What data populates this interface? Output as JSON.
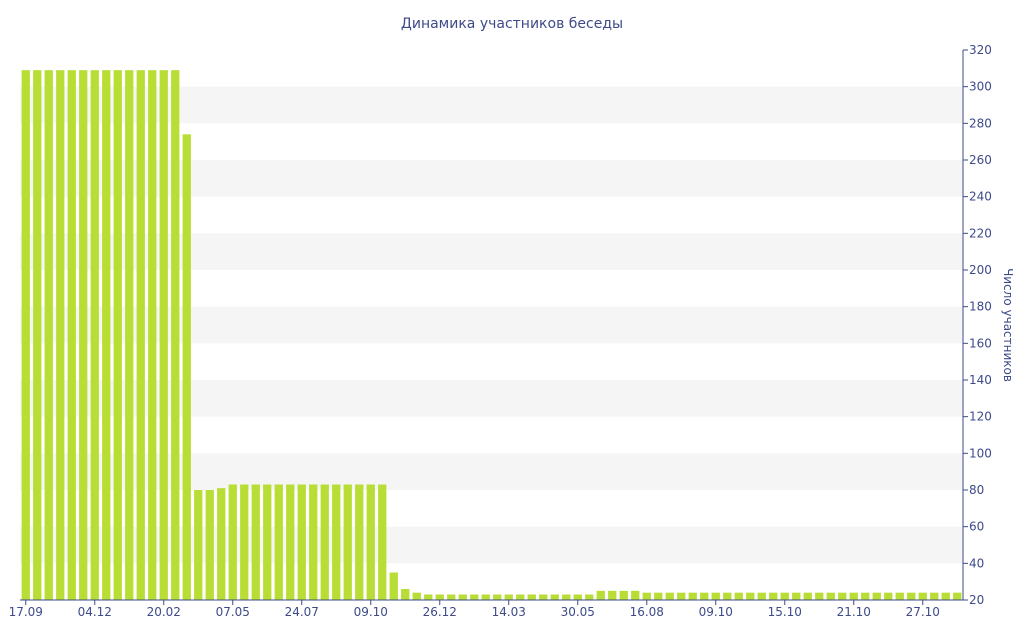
{
  "chart_data": {
    "type": "bar",
    "title": "Динамика участников беседы",
    "xlabel": "",
    "ylabel": "Число участников",
    "ylim": [
      20,
      320
    ],
    "yticks": [
      20,
      40,
      60,
      80,
      100,
      120,
      140,
      160,
      180,
      200,
      220,
      240,
      260,
      280,
      300,
      320
    ],
    "y_axis_side": "right",
    "grid": "alternating horizontal bands",
    "bar_color": "#b8dd34",
    "band_color": "#f5f5f5",
    "text_color": "#3e4a89",
    "x_tick_labels": [
      {
        "label": "17.09",
        "index": 0
      },
      {
        "label": "04.12",
        "index": 6
      },
      {
        "label": "20.02",
        "index": 12
      },
      {
        "label": "07.05",
        "index": 18
      },
      {
        "label": "24.07",
        "index": 24
      },
      {
        "label": "09.10",
        "index": 30
      },
      {
        "label": "26.12",
        "index": 36
      },
      {
        "label": "14.03",
        "index": 42
      },
      {
        "label": "30.05",
        "index": 48
      },
      {
        "label": "16.08",
        "index": 54
      },
      {
        "label": "09.10",
        "index": 60
      },
      {
        "label": "15.10",
        "index": 66
      },
      {
        "label": "21.10",
        "index": 72
      },
      {
        "label": "27.10",
        "index": 78
      }
    ],
    "values": [
      309,
      309,
      309,
      309,
      309,
      309,
      309,
      309,
      309,
      309,
      309,
      309,
      309,
      309,
      274,
      80,
      80,
      81,
      83,
      83,
      83,
      83,
      83,
      83,
      83,
      83,
      83,
      83,
      83,
      83,
      83,
      83,
      35,
      26,
      24,
      23,
      23,
      23,
      23,
      23,
      23,
      23,
      23,
      23,
      23,
      23,
      23,
      23,
      23,
      23,
      25,
      25,
      25,
      25,
      24,
      24,
      24,
      24,
      24,
      24,
      24,
      24,
      24,
      24,
      24,
      24,
      24,
      24,
      24,
      24,
      24,
      24,
      24,
      24,
      24,
      24,
      24,
      24,
      24,
      24,
      24,
      24
    ]
  }
}
